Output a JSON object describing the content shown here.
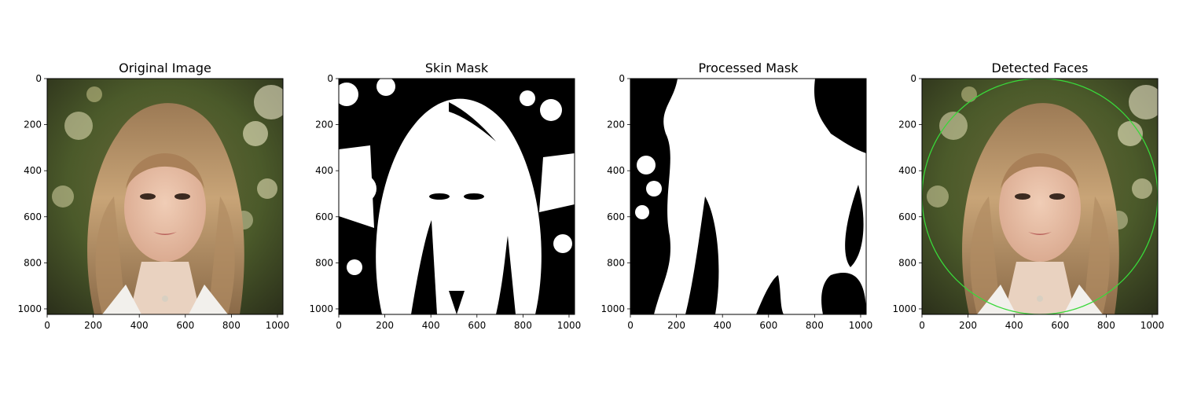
{
  "figure": {
    "panels": [
      {
        "title": "Original Image",
        "kind": "photo"
      },
      {
        "title": "Skin Mask",
        "kind": "mask-raw"
      },
      {
        "title": "Processed Mask",
        "kind": "mask-processed"
      },
      {
        "title": "Detected Faces",
        "kind": "photo-detected"
      }
    ],
    "x_ticks": [
      "0",
      "200",
      "400",
      "600",
      "800",
      "1000"
    ],
    "y_ticks": [
      "0",
      "200",
      "400",
      "600",
      "800",
      "1000"
    ],
    "image_extent": [
      0,
      1024
    ],
    "detection_color": "#39d83a"
  }
}
